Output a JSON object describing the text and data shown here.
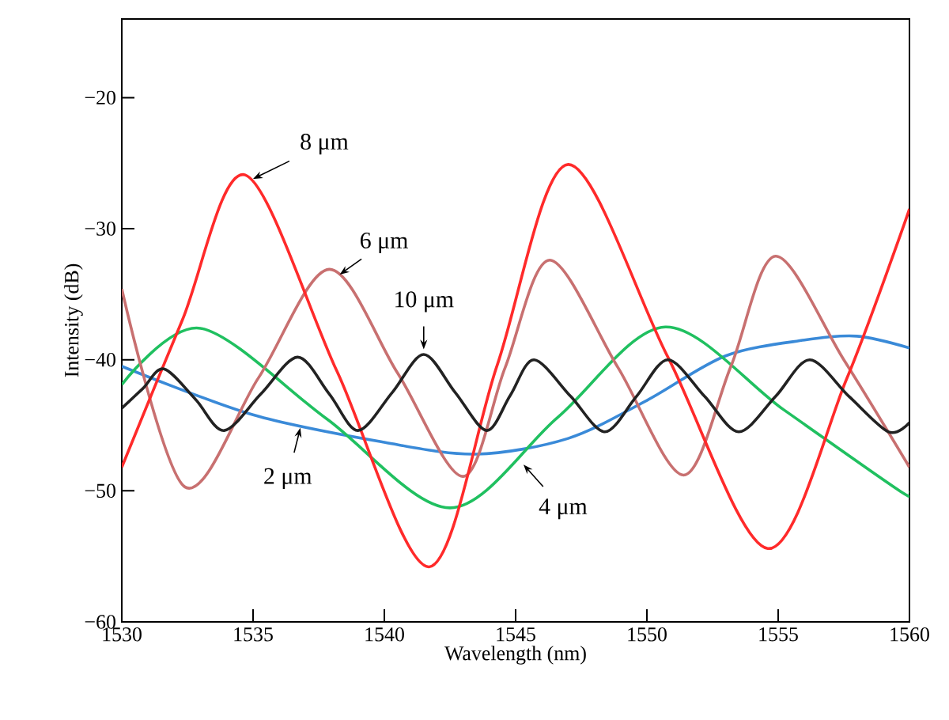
{
  "chart_data": {
    "type": "line",
    "xlabel": "Wavelength (nm)",
    "ylabel": "Intensity (dB)",
    "xlim": [
      1530,
      1560
    ],
    "ylim": [
      -60,
      -14
    ],
    "xticks": [
      1530,
      1535,
      1540,
      1545,
      1550,
      1555,
      1560
    ],
    "yticks": [
      {
        "value": -60,
        "label": "−60"
      },
      {
        "value": -50,
        "label": "−50"
      },
      {
        "value": -40,
        "label": "−40"
      },
      {
        "value": -30,
        "label": "−30"
      },
      {
        "value": -20,
        "label": "−20"
      }
    ],
    "grid": false,
    "marker": "none",
    "line_style": "solid",
    "series": [
      {
        "color": "#3a8ad8",
        "x": [
          1530,
          1535,
          1540,
          1543.5,
          1547,
          1550,
          1553,
          1556,
          1558,
          1560
        ],
        "values": [
          -40.5,
          -44.2,
          -46.3,
          -47.2,
          -46.0,
          -43.1,
          -39.7,
          -38.5,
          -38.2,
          -39.1
        ]
      },
      {
        "color": "#20c060",
        "x": [
          1530,
          1533.0,
          1537.8,
          1542.5,
          1546.6,
          1550.7,
          1555.2,
          1559.7,
          1560
        ],
        "values": [
          -41.9,
          -37.6,
          -44.5,
          -51.3,
          -44.4,
          -37.5,
          -43.8,
          -50.1,
          -50.0
        ]
      },
      {
        "color": "#c87070",
        "x": [
          1530,
          1532.4,
          1535.2,
          1537.9,
          1540.5,
          1543.0,
          1544.6,
          1546.3,
          1548.9,
          1551.4,
          1553.2,
          1554.9,
          1557.5,
          1560
        ],
        "values": [
          -34.6,
          -49.7,
          -41.4,
          -33.1,
          -41.0,
          -48.9,
          -40.6,
          -32.4,
          -40.6,
          -48.8,
          -40.5,
          -32.1,
          -40.0,
          -48.2
        ]
      },
      {
        "color": "#ff2a2a",
        "x": [
          1530,
          1532.3,
          1534.7,
          1538.2,
          1541.7,
          1544.3,
          1547.0,
          1550.8,
          1554.6,
          1557.6,
          1560
        ],
        "values": [
          -48.2,
          -37.0,
          -25.9,
          -40.9,
          -55.8,
          -40.4,
          -25.1,
          -39.8,
          -54.4,
          -41.5,
          -28.5
        ]
      },
      {
        "color": "#222222",
        "x": [
          1530,
          1530.8,
          1531.6,
          1532.8,
          1533.9,
          1535.3,
          1536.7,
          1537.9,
          1539.0,
          1540.3,
          1541.5,
          1542.7,
          1543.9,
          1544.8,
          1545.7,
          1547.1,
          1548.4,
          1549.6,
          1550.8,
          1552.2,
          1553.5,
          1554.9,
          1556.2,
          1557.7,
          1559.2,
          1560
        ],
        "values": [
          -43.7,
          -42.2,
          -40.7,
          -43.0,
          -45.4,
          -42.6,
          -39.8,
          -42.6,
          -45.4,
          -42.5,
          -39.6,
          -42.5,
          -45.4,
          -42.7,
          -40.0,
          -42.8,
          -45.5,
          -42.8,
          -40.0,
          -42.8,
          -45.5,
          -42.8,
          -40.0,
          -42.8,
          -45.5,
          -44.8
        ]
      }
    ],
    "annotations": [
      {
        "text": "8 μm",
        "x": 1535.0,
        "y": -26.2
      },
      {
        "text": "6 μm",
        "x": 1538.3,
        "y": -33.5
      },
      {
        "text": "10 μm",
        "x": 1541.5,
        "y": -39.2
      },
      {
        "text": "2 μm",
        "x": 1536.8,
        "y": -45.2
      },
      {
        "text": "4 μm",
        "x": 1545.3,
        "y": -48.0
      }
    ]
  }
}
